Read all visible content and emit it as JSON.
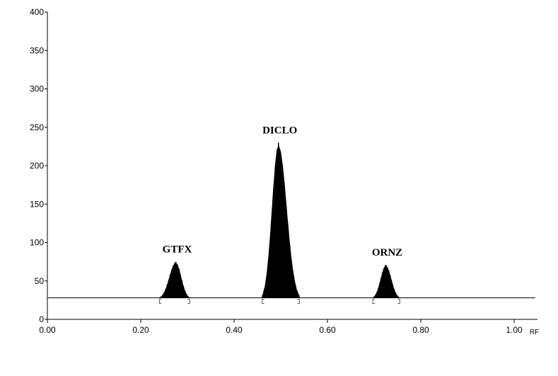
{
  "chart_data": {
    "type": "area",
    "xlabel": "RF",
    "ylabel": "",
    "xlim": [
      0,
      1.06
    ],
    "ylim": [
      0,
      400
    ],
    "x_ticks": [
      0.0,
      0.2,
      0.4,
      0.6,
      0.8,
      1.0
    ],
    "x_tick_labels": [
      "0.00",
      "0.20",
      "0.40",
      "0.60",
      "0.80",
      "1.00"
    ],
    "y_ticks": [
      0,
      50,
      100,
      150,
      200,
      250,
      300,
      350,
      400
    ],
    "y_tick_labels": [
      "0",
      "50",
      "100",
      "150",
      "200",
      "250",
      "300",
      "350",
      "400"
    ],
    "baseline": 28,
    "grid": false,
    "peaks": [
      {
        "label": "GTFX",
        "rf": 0.275,
        "height": 75,
        "start": 0.24,
        "end": 0.305
      },
      {
        "label": "DICLO",
        "rf": 0.495,
        "height": 230,
        "start": 0.46,
        "end": 0.54
      },
      {
        "label": "ORNZ",
        "rf": 0.725,
        "height": 71,
        "start": 0.697,
        "end": 0.755
      }
    ]
  }
}
